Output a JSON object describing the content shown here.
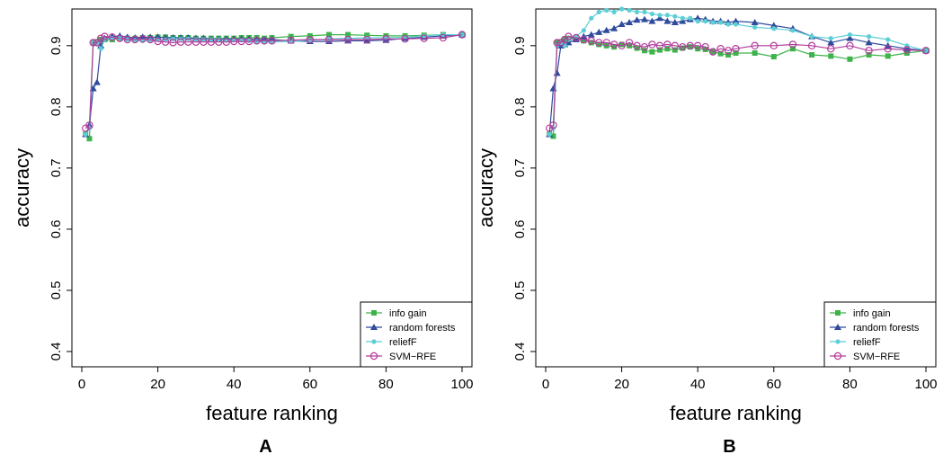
{
  "colors": {
    "info_gain": "#3db44b",
    "random_forests": "#2f4b9c",
    "reliefF": "#5ccfd6",
    "svm_rfe": "#b33c9c"
  },
  "chart_data": [
    {
      "type": "line",
      "panel_label": "A",
      "xlabel": "feature ranking",
      "ylabel": "accuracy",
      "xlim": [
        0,
        100
      ],
      "ylim": [
        0.375,
        0.96
      ],
      "x_ticks": [
        0,
        20,
        40,
        60,
        80,
        100
      ],
      "y_ticks": [
        0.4,
        0.5,
        0.6,
        0.7,
        0.8,
        0.9
      ],
      "legend": {
        "position": "bottom-right",
        "entries": [
          "info gain",
          "random forests",
          "reliefF",
          "SVM−RFE"
        ]
      },
      "series": [
        {
          "name": "info gain",
          "color": "#3db44b",
          "marker": "square",
          "x": [
            1,
            2,
            3,
            4,
            5,
            6,
            8,
            10,
            12,
            14,
            16,
            18,
            20,
            22,
            24,
            26,
            28,
            30,
            32,
            34,
            36,
            38,
            40,
            42,
            44,
            46,
            48,
            50,
            55,
            60,
            65,
            70,
            75,
            80,
            85,
            90,
            95,
            100
          ],
          "y": [
            0.755,
            0.748,
            0.905,
            0.905,
            0.91,
            0.91,
            0.91,
            0.912,
            0.912,
            0.912,
            0.913,
            0.913,
            0.914,
            0.914,
            0.913,
            0.913,
            0.913,
            0.912,
            0.912,
            0.912,
            0.912,
            0.912,
            0.912,
            0.913,
            0.913,
            0.913,
            0.912,
            0.913,
            0.915,
            0.916,
            0.918,
            0.918,
            0.917,
            0.916,
            0.916,
            0.917,
            0.918,
            0.918
          ]
        },
        {
          "name": "random forests",
          "color": "#2f4b9c",
          "marker": "triangle",
          "x": [
            1,
            2,
            3,
            4,
            5,
            6,
            8,
            10,
            12,
            14,
            16,
            18,
            20,
            22,
            24,
            26,
            28,
            30,
            32,
            34,
            36,
            38,
            40,
            42,
            44,
            46,
            48,
            50,
            55,
            60,
            65,
            70,
            75,
            80,
            85,
            90,
            95,
            100
          ],
          "y": [
            0.755,
            0.77,
            0.83,
            0.84,
            0.9,
            0.912,
            0.915,
            0.916,
            0.914,
            0.913,
            0.914,
            0.914,
            0.914,
            0.913,
            0.913,
            0.913,
            0.913,
            0.912,
            0.912,
            0.911,
            0.911,
            0.911,
            0.911,
            0.911,
            0.911,
            0.91,
            0.91,
            0.91,
            0.908,
            0.907,
            0.907,
            0.908,
            0.908,
            0.909,
            0.912,
            0.914,
            0.916,
            0.918
          ]
        },
        {
          "name": "reliefF",
          "color": "#5ccfd6",
          "marker": "dot",
          "x": [
            1,
            2,
            3,
            4,
            5,
            6,
            8,
            10,
            12,
            14,
            16,
            18,
            20,
            22,
            24,
            26,
            28,
            30,
            32,
            34,
            36,
            38,
            40,
            42,
            44,
            46,
            48,
            50,
            55,
            60,
            65,
            70,
            75,
            80,
            85,
            90,
            95,
            100
          ],
          "y": [
            0.755,
            0.765,
            0.905,
            0.905,
            0.895,
            0.91,
            0.912,
            0.912,
            0.91,
            0.909,
            0.908,
            0.909,
            0.91,
            0.91,
            0.911,
            0.911,
            0.911,
            0.91,
            0.91,
            0.91,
            0.91,
            0.909,
            0.909,
            0.909,
            0.908,
            0.907,
            0.906,
            0.906,
            0.907,
            0.909,
            0.911,
            0.912,
            0.913,
            0.913,
            0.914,
            0.916,
            0.918,
            0.918
          ]
        },
        {
          "name": "SVM−RFE",
          "color": "#b33c9c",
          "marker": "circle",
          "x": [
            1,
            2,
            3,
            4,
            5,
            6,
            8,
            10,
            12,
            14,
            16,
            18,
            20,
            22,
            24,
            26,
            28,
            30,
            32,
            34,
            36,
            38,
            40,
            42,
            44,
            46,
            48,
            50,
            55,
            60,
            65,
            70,
            75,
            80,
            85,
            90,
            95,
            100
          ],
          "y": [
            0.765,
            0.77,
            0.905,
            0.905,
            0.912,
            0.915,
            0.914,
            0.912,
            0.91,
            0.91,
            0.911,
            0.91,
            0.907,
            0.906,
            0.905,
            0.906,
            0.906,
            0.906,
            0.906,
            0.906,
            0.906,
            0.906,
            0.907,
            0.907,
            0.907,
            0.908,
            0.908,
            0.908,
            0.909,
            0.91,
            0.91,
            0.91,
            0.91,
            0.911,
            0.911,
            0.912,
            0.913,
            0.918
          ]
        }
      ]
    },
    {
      "type": "line",
      "panel_label": "B",
      "xlabel": "feature ranking",
      "ylabel": "accuracy",
      "xlim": [
        0,
        100
      ],
      "ylim": [
        0.375,
        0.96
      ],
      "x_ticks": [
        0,
        20,
        40,
        60,
        80,
        100
      ],
      "y_ticks": [
        0.4,
        0.5,
        0.6,
        0.7,
        0.8,
        0.9
      ],
      "legend": {
        "position": "bottom-right",
        "entries": [
          "info gain",
          "random forests",
          "reliefF",
          "SVM−RFE"
        ]
      },
      "series": [
        {
          "name": "info gain",
          "color": "#3db44b",
          "marker": "square",
          "x": [
            1,
            2,
            3,
            4,
            5,
            6,
            8,
            10,
            12,
            14,
            16,
            18,
            20,
            22,
            24,
            26,
            28,
            30,
            32,
            34,
            36,
            38,
            40,
            42,
            44,
            46,
            48,
            50,
            55,
            60,
            65,
            70,
            75,
            80,
            85,
            90,
            95,
            100
          ],
          "y": [
            0.755,
            0.752,
            0.905,
            0.905,
            0.91,
            0.912,
            0.91,
            0.908,
            0.905,
            0.902,
            0.9,
            0.898,
            0.902,
            0.9,
            0.896,
            0.892,
            0.89,
            0.893,
            0.895,
            0.893,
            0.896,
            0.898,
            0.895,
            0.894,
            0.89,
            0.887,
            0.885,
            0.888,
            0.888,
            0.882,
            0.895,
            0.885,
            0.883,
            0.878,
            0.885,
            0.883,
            0.888,
            0.892
          ]
        },
        {
          "name": "random forests",
          "color": "#2f4b9c",
          "marker": "triangle",
          "x": [
            1,
            2,
            3,
            4,
            5,
            6,
            8,
            10,
            12,
            14,
            16,
            18,
            20,
            22,
            24,
            26,
            28,
            30,
            32,
            34,
            36,
            38,
            40,
            42,
            44,
            46,
            48,
            50,
            55,
            60,
            65,
            70,
            75,
            80,
            85,
            90,
            95,
            100
          ],
          "y": [
            0.755,
            0.83,
            0.855,
            0.9,
            0.902,
            0.905,
            0.91,
            0.915,
            0.918,
            0.922,
            0.925,
            0.928,
            0.935,
            0.938,
            0.942,
            0.943,
            0.94,
            0.945,
            0.94,
            0.938,
            0.94,
            0.943,
            0.945,
            0.943,
            0.94,
            0.94,
            0.938,
            0.94,
            0.938,
            0.933,
            0.928,
            0.915,
            0.905,
            0.912,
            0.905,
            0.9,
            0.895,
            0.892
          ]
        },
        {
          "name": "reliefF",
          "color": "#5ccfd6",
          "marker": "dot",
          "x": [
            1,
            2,
            3,
            4,
            5,
            6,
            8,
            10,
            12,
            14,
            16,
            18,
            20,
            22,
            24,
            26,
            28,
            30,
            32,
            34,
            36,
            38,
            40,
            42,
            44,
            46,
            48,
            50,
            55,
            60,
            65,
            70,
            75,
            80,
            85,
            90,
            95,
            100
          ],
          "y": [
            0.755,
            0.765,
            0.9,
            0.905,
            0.9,
            0.91,
            0.915,
            0.925,
            0.945,
            0.955,
            0.958,
            0.955,
            0.96,
            0.958,
            0.955,
            0.955,
            0.952,
            0.95,
            0.95,
            0.948,
            0.945,
            0.945,
            0.94,
            0.94,
            0.938,
            0.938,
            0.935,
            0.935,
            0.93,
            0.928,
            0.925,
            0.915,
            0.912,
            0.918,
            0.915,
            0.91,
            0.9,
            0.892
          ]
        },
        {
          "name": "SVM−RFE",
          "color": "#b33c9c",
          "marker": "circle",
          "x": [
            1,
            2,
            3,
            4,
            5,
            6,
            8,
            10,
            12,
            14,
            16,
            18,
            20,
            22,
            24,
            26,
            28,
            30,
            32,
            34,
            36,
            38,
            40,
            42,
            44,
            46,
            48,
            50,
            55,
            60,
            65,
            70,
            75,
            80,
            85,
            90,
            95,
            100
          ],
          "y": [
            0.765,
            0.77,
            0.905,
            0.905,
            0.91,
            0.915,
            0.913,
            0.91,
            0.908,
            0.905,
            0.905,
            0.902,
            0.9,
            0.905,
            0.9,
            0.898,
            0.902,
            0.9,
            0.902,
            0.9,
            0.898,
            0.9,
            0.9,
            0.898,
            0.89,
            0.895,
            0.892,
            0.895,
            0.9,
            0.9,
            0.902,
            0.9,
            0.895,
            0.9,
            0.892,
            0.895,
            0.893,
            0.892
          ]
        }
      ]
    }
  ]
}
